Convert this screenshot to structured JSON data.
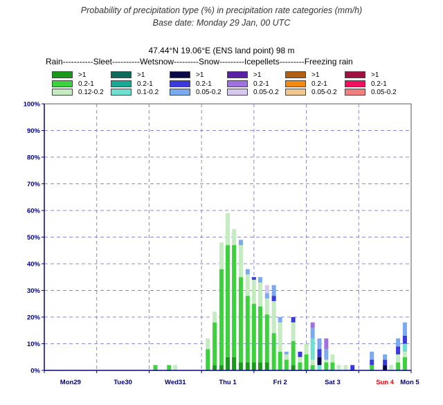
{
  "header": {
    "title": "Probability of precipitation type (%) in precipitation rate categories (mm/h)",
    "subtitle": "Base date: Monday 29 Jan, 00 UTC",
    "location": "47.44°N 19.06°E (ENS land point) 98 m",
    "categories_line": "Rain-----------Sleet----------Wetsnow---------Snow---------Icepellets---------Freezing rain"
  },
  "legend": {
    "columns": [
      {
        "type": "Rain",
        "items": [
          {
            "label": ">1",
            "color": "#1a9a1a"
          },
          {
            "label": "0.2-1",
            "color": "#3dd23d"
          },
          {
            "label": "0.12-0.2",
            "color": "#c4ecc0"
          }
        ]
      },
      {
        "type": "Sleet",
        "items": [
          {
            "label": ">1",
            "color": "#0e6b5c"
          },
          {
            "label": "0.2-1",
            "color": "#1aa894"
          },
          {
            "label": "0.1-0.2",
            "color": "#6ee0d0"
          }
        ]
      },
      {
        "type": "Wetsnow",
        "items": [
          {
            "label": ">1",
            "color": "#0a0a4a"
          },
          {
            "label": "0.2-1",
            "color": "#3a3adf"
          },
          {
            "label": "0.05-0.2",
            "color": "#7aaaf0"
          }
        ]
      },
      {
        "type": "Snow",
        "items": [
          {
            "label": ">1",
            "color": "#5a20a8"
          },
          {
            "label": "0.2-1",
            "color": "#a070e0"
          },
          {
            "label": "0.05-0.2",
            "color": "#d8c8f0"
          }
        ]
      },
      {
        "type": "Icepellets",
        "items": [
          {
            "label": ">1",
            "color": "#b06010"
          },
          {
            "label": "0.2-1",
            "color": "#f08a10"
          },
          {
            "label": "0.05-0.2",
            "color": "#f0c890"
          }
        ]
      },
      {
        "type": "Freezing rain",
        "items": [
          {
            "label": ">1",
            "color": "#a01040"
          },
          {
            "label": "0.2-1",
            "color": "#f01060"
          },
          {
            "label": "0.05-0.2",
            "color": "#f08080"
          }
        ]
      }
    ]
  },
  "chart_data": {
    "type": "bar",
    "stacked": true,
    "title": "Probability of precipitation type (%) in precipitation rate categories (mm/h)",
    "ylim": [
      0,
      100
    ],
    "yticks": [
      "0%",
      "10%",
      "20%",
      "30%",
      "40%",
      "50%",
      "60%",
      "70%",
      "80%",
      "90%",
      "100%"
    ],
    "xlim": [
      0,
      7
    ],
    "xticks": [
      {
        "label": "Mon29",
        "x": 0.5,
        "color": "#000080"
      },
      {
        "label": "Tue30",
        "x": 1.5,
        "color": "#000080"
      },
      {
        "label": "Wed31",
        "x": 2.5,
        "color": "#000080"
      },
      {
        "label": "Thu 1",
        "x": 3.5,
        "color": "#000080"
      },
      {
        "label": "Fri 2",
        "x": 4.5,
        "color": "#000080"
      },
      {
        "label": "Sat 3",
        "x": 5.5,
        "color": "#000080"
      },
      {
        "label": "Sun 4",
        "x": 6.5,
        "color": "#ff0000"
      },
      {
        "label": "Mon 5",
        "x": 7.5,
        "color": "#000080"
      }
    ],
    "grid": true,
    "series_keys": [
      "Rain >1",
      "Rain 0.2-1",
      "Rain 0.12-0.2",
      "Sleet >1",
      "Sleet 0.2-1",
      "Sleet 0.1-0.2",
      "Wetsnow >1",
      "Wetsnow 0.2-1",
      "Wetsnow 0.05-0.2",
      "Snow >1",
      "Snow 0.2-1",
      "Snow 0.05-0.2"
    ],
    "bars": [
      {
        "x": 2.12,
        "segs": {
          "Rain 0.2-1": 2
        }
      },
      {
        "x": 2.38,
        "segs": {
          "Rain 0.2-1": 2
        }
      },
      {
        "x": 2.5,
        "segs": {
          "Rain 0.12-0.2": 2
        }
      },
      {
        "x": 3.12,
        "segs": {
          "Rain 0.2-1": 8,
          "Rain 0.12-0.2": 4
        }
      },
      {
        "x": 3.25,
        "segs": {
          "Rain >1": 2,
          "Rain 0.2-1": 16,
          "Rain 0.12-0.2": 4
        }
      },
      {
        "x": 3.38,
        "segs": {
          "Rain >1": 2,
          "Rain 0.2-1": 36,
          "Rain 0.12-0.2": 10
        }
      },
      {
        "x": 3.5,
        "segs": {
          "Rain >1": 5,
          "Rain 0.2-1": 42,
          "Rain 0.12-0.2": 12
        }
      },
      {
        "x": 3.62,
        "segs": {
          "Rain >1": 5,
          "Rain 0.2-1": 42,
          "Rain 0.12-0.2": 6
        }
      },
      {
        "x": 3.75,
        "segs": {
          "Wetsnow 0.05-0.2": 2,
          "Rain >1": 3,
          "Rain 0.2-1": 32,
          "Rain 0.12-0.2": 12
        }
      },
      {
        "x": 3.88,
        "segs": {
          "Wetsnow 0.05-0.2": 2,
          "Rain >1": 3,
          "Rain 0.2-1": 25,
          "Rain 0.12-0.2": 8
        }
      },
      {
        "x": 4.0,
        "segs": {
          "Wetsnow 0.2-1": 1,
          "Rain >1": 3,
          "Rain 0.2-1": 22,
          "Rain 0.12-0.2": 9
        }
      },
      {
        "x": 4.12,
        "segs": {
          "Wetsnow 0.05-0.2": 2,
          "Rain >1": 3,
          "Rain 0.2-1": 21,
          "Rain 0.12-0.2": 9
        }
      },
      {
        "x": 4.25,
        "segs": {
          "Snow 0.05-0.2": 3,
          "Wetsnow 0.05-0.2": 2,
          "Rain >1": 3,
          "Rain 0.2-1": 18,
          "Rain 0.12-0.2": 6
        }
      },
      {
        "x": 4.38,
        "segs": {
          "Wetsnow 0.2-1": 2,
          "Wetsnow 0.05-0.2": 4,
          "Rain 0.2-1": 14,
          "Rain 0.12-0.2": 12
        }
      },
      {
        "x": 4.5,
        "segs": {
          "Wetsnow 0.05-0.2": 2,
          "Rain 0.2-1": 7,
          "Rain 0.12-0.2": 11
        }
      },
      {
        "x": 4.62,
        "segs": {
          "Wetsnow 0.05-0.2": 1,
          "Rain 0.2-1": 4,
          "Rain 0.12-0.2": 2
        }
      },
      {
        "x": 4.75,
        "segs": {
          "Wetsnow 0.2-1": 2,
          "Rain >1": 2,
          "Rain 0.2-1": 9,
          "Rain 0.12-0.2": 7
        }
      },
      {
        "x": 4.88,
        "segs": {
          "Wetsnow 0.2-1": 2,
          "Rain 0.2-1": 3,
          "Rain 0.12-0.2": 2
        }
      },
      {
        "x": 5.0,
        "segs": {
          "Rain 0.2-1": 6,
          "Rain 0.12-0.2": 4
        }
      },
      {
        "x": 5.12,
        "segs": {
          "Snow 0.2-1": 2,
          "Wetsnow 0.05-0.2": 4,
          "Sleet 0.1-0.2": 8,
          "Rain 0.2-1": 2,
          "Rain 0.12-0.2": 2
        }
      },
      {
        "x": 5.25,
        "segs": {
          "Wetsnow >1": 3,
          "Wetsnow 0.2-1": 3,
          "Wetsnow 0.05-0.2": 4,
          "Sleet 0.1-0.2": 2
        }
      },
      {
        "x": 5.38,
        "segs": {
          "Snow 0.2-1": 4,
          "Wetsnow 0.05-0.2": 4,
          "Rain 0.2-1": 3,
          "Rain 0.12-0.2": 1
        }
      },
      {
        "x": 5.5,
        "segs": {
          "Rain 0.2-1": 3,
          "Rain 0.12-0.2": 3
        }
      },
      {
        "x": 5.62,
        "segs": {
          "Rain 0.12-0.2": 2
        }
      },
      {
        "x": 5.75,
        "segs": {
          "Rain 0.12-0.2": 2
        }
      },
      {
        "x": 5.88,
        "segs": {
          "Wetsnow 0.2-1": 2
        }
      },
      {
        "x": 6.25,
        "segs": {
          "Wetsnow 0.2-1": 2,
          "Wetsnow 0.05-0.2": 3,
          "Rain 0.2-1": 2
        }
      },
      {
        "x": 6.5,
        "segs": {
          "Wetsnow >1": 2,
          "Wetsnow 0.2-1": 2,
          "Wetsnow 0.05-0.2": 2
        }
      },
      {
        "x": 6.62,
        "segs": {
          "Rain 0.12-0.2": 2
        }
      },
      {
        "x": 6.75,
        "segs": {
          "Wetsnow 0.2-1": 3,
          "Wetsnow 0.05-0.2": 3,
          "Rain 0.2-1": 3,
          "Rain 0.12-0.2": 3
        }
      },
      {
        "x": 6.88,
        "segs": {
          "Wetsnow 0.2-1": 3,
          "Wetsnow 0.05-0.2": 5,
          "Sleet 0.1-0.2": 3,
          "Rain 0.2-1": 5,
          "Rain 0.12-0.2": 2
        }
      }
    ]
  }
}
